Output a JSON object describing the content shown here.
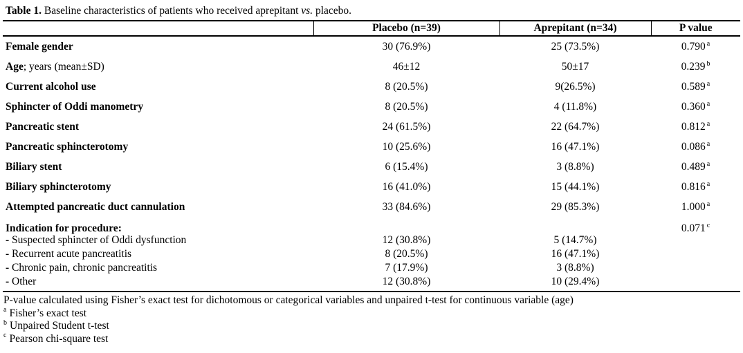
{
  "title": {
    "bold": "Table 1.",
    "mid": " Baseline characteristics of patients who received aprepitant ",
    "italic": "vs.",
    "end": " placebo."
  },
  "table": {
    "headers": {
      "label": "",
      "placebo": "Placebo (n=39)",
      "aprepitant": "Aprepitant (n=34)",
      "pvalue": "P value"
    },
    "rows": [
      {
        "label_bold": "Female gender",
        "label_rest": "",
        "placebo": "30 (76.9%)",
        "aprepitant": "25 (73.5%)",
        "p": "0.790",
        "p_sup": "a"
      },
      {
        "label_bold": "Age",
        "label_rest": "; years (mean±SD)",
        "placebo": "46±12",
        "aprepitant": "50±17",
        "p": "0.239",
        "p_sup": "b"
      },
      {
        "label_bold": "Current alcohol use",
        "label_rest": "",
        "placebo": "8 (20.5%)",
        "aprepitant": "9(26.5%)",
        "p": "0.589",
        "p_sup": "a"
      },
      {
        "label_bold": "Sphincter of Oddi manometry",
        "label_rest": "",
        "placebo": "8 (20.5%)",
        "aprepitant": "4 (11.8%)",
        "p": "0.360",
        "p_sup": "a"
      },
      {
        "label_bold": "Pancreatic stent",
        "label_rest": "",
        "placebo": "24 (61.5%)",
        "aprepitant": "22 (64.7%)",
        "p": "0.812",
        "p_sup": "a"
      },
      {
        "label_bold": "Pancreatic sphincterotomy",
        "label_rest": "",
        "placebo": "10 (25.6%)",
        "aprepitant": "16 (47.1%)",
        "p": "0.086",
        "p_sup": "a"
      },
      {
        "label_bold": "Biliary stent",
        "label_rest": "",
        "placebo": "6 (15.4%)",
        "aprepitant": "3 (8.8%)",
        "p": "0.489",
        "p_sup": "a"
      },
      {
        "label_bold": "Biliary sphincterotomy",
        "label_rest": "",
        "placebo": "16 (41.0%)",
        "aprepitant": "15 (44.1%)",
        "p": "0.816",
        "p_sup": "a"
      },
      {
        "label_bold": "Attempted pancreatic duct cannulation",
        "label_rest": "",
        "placebo": "33 (84.6%)",
        "aprepitant": "29 (85.3%)",
        "p": "1.000",
        "p_sup": "a"
      },
      {
        "label_bold": "Indication for procedure:",
        "label_rest": "",
        "placebo": "",
        "aprepitant": "",
        "p": "0.071",
        "p_sup": "c"
      },
      {
        "label_bold": "-",
        "label_rest": " Suspected sphincter of Oddi dysfunction",
        "placebo": "12 (30.8%)",
        "aprepitant": "5 (14.7%)",
        "p": "",
        "p_sup": ""
      },
      {
        "label_bold": "-",
        "label_rest": " Recurrent acute pancreatitis",
        "placebo": "8 (20.5%)",
        "aprepitant": "16 (47.1%)",
        "p": "",
        "p_sup": ""
      },
      {
        "label_bold": "-",
        "label_rest": " Chronic pain, chronic pancreatitis",
        "placebo": "7 (17.9%)",
        "aprepitant": "3 (8.8%)",
        "p": "",
        "p_sup": ""
      },
      {
        "label_bold": "-",
        "label_rest": " Other",
        "placebo": "12 (30.8%)",
        "aprepitant": "10 (29.4%)",
        "p": "",
        "p_sup": ""
      }
    ]
  },
  "footnotes": {
    "main": "P-value calculated using Fisher’s exact test for dichotomous or categorical variables and unpaired t-test for continuous variable (age)",
    "a_sup": "a",
    "a_text": "Fisher’s exact test",
    "b_sup": "b",
    "b_text": "Unpaired Student t-test",
    "c_sup": "c",
    "c_text": "Pearson chi-square test"
  },
  "colors": {
    "text": "#000000",
    "background": "#ffffff",
    "rule": "#000000"
  }
}
